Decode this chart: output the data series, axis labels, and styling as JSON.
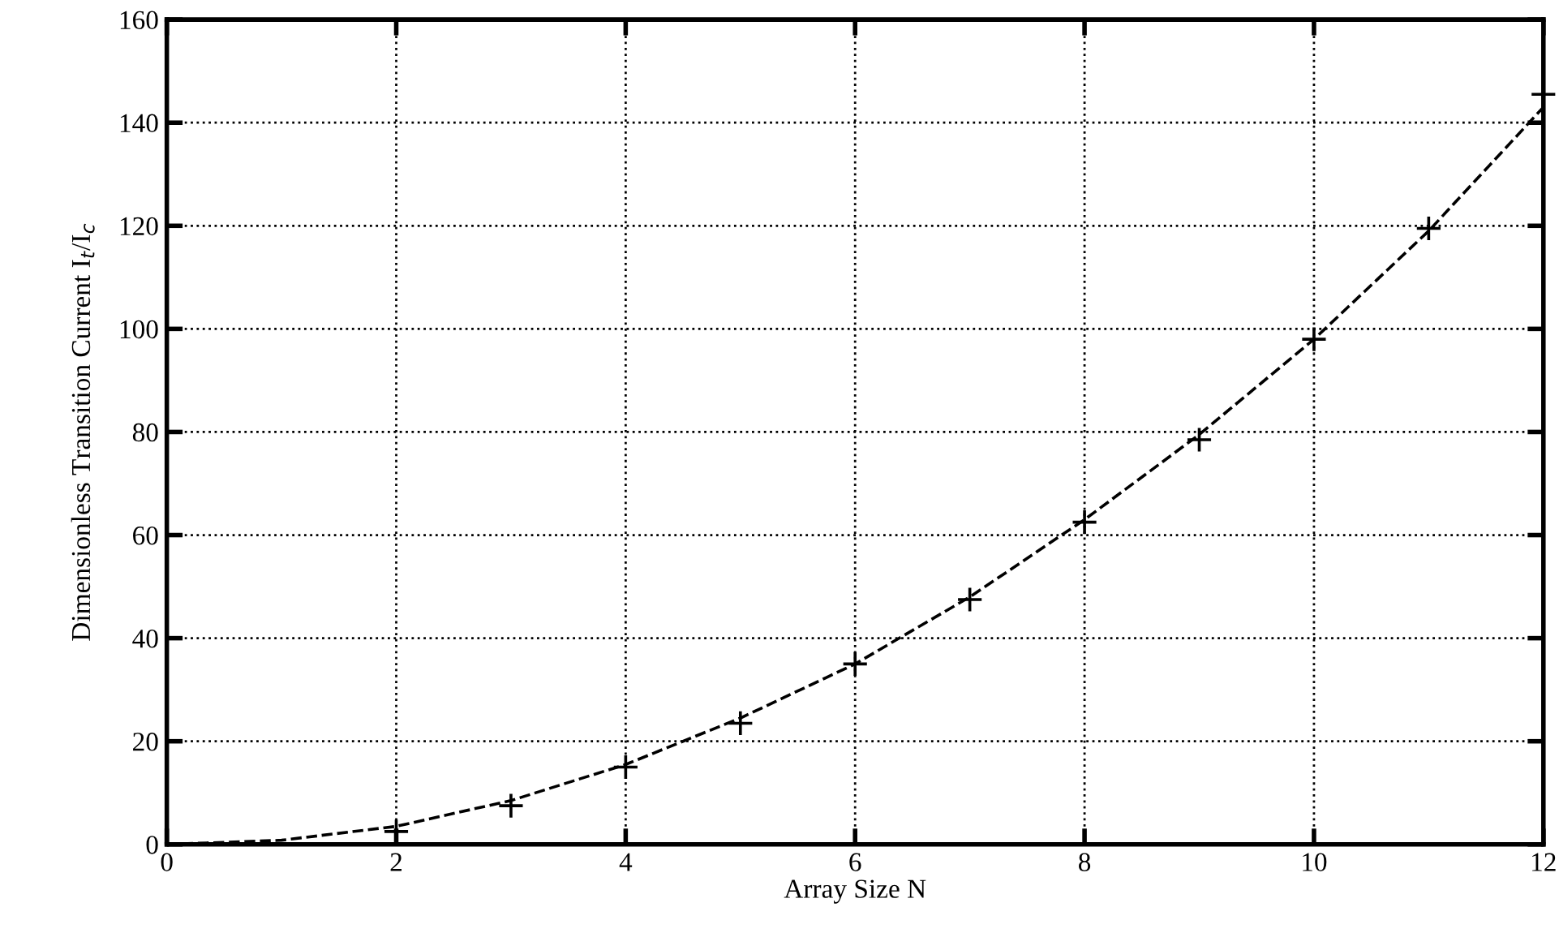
{
  "chart_data": {
    "type": "scatter",
    "xlabel": "Array Size N",
    "ylabel": "Dimensionless Transition Current I$_{t}$/I$_{c}$",
    "x": [
      2,
      3,
      4,
      5,
      6,
      7,
      8,
      9,
      10,
      11,
      12
    ],
    "series": [
      {
        "color": "#000000",
        "marker": "cross",
        "values": [
          2.5,
          7.5,
          15,
          23.5,
          35,
          47.5,
          62.5,
          78.5,
          98,
          119.5,
          145.5
        ]
      },
      {
        "type": "line",
        "color": "#000000",
        "line_style": "dashed",
        "marker": "none",
        "x": [
          0,
          1,
          2,
          3,
          4,
          5,
          6,
          7,
          8,
          9,
          10,
          11,
          12
        ],
        "values": [
          0,
          0.8,
          3.5,
          8.5,
          15.5,
          24.5,
          35,
          48,
          63,
          79.5,
          98,
          119,
          143
        ]
      }
    ],
    "xlim": [
      0,
      12
    ],
    "ylim": [
      0,
      160
    ],
    "xticks": [
      0,
      2,
      4,
      6,
      8,
      10,
      12
    ],
    "yticks": [
      0,
      20,
      40,
      60,
      80,
      100,
      120,
      140,
      160
    ],
    "grid": true
  }
}
